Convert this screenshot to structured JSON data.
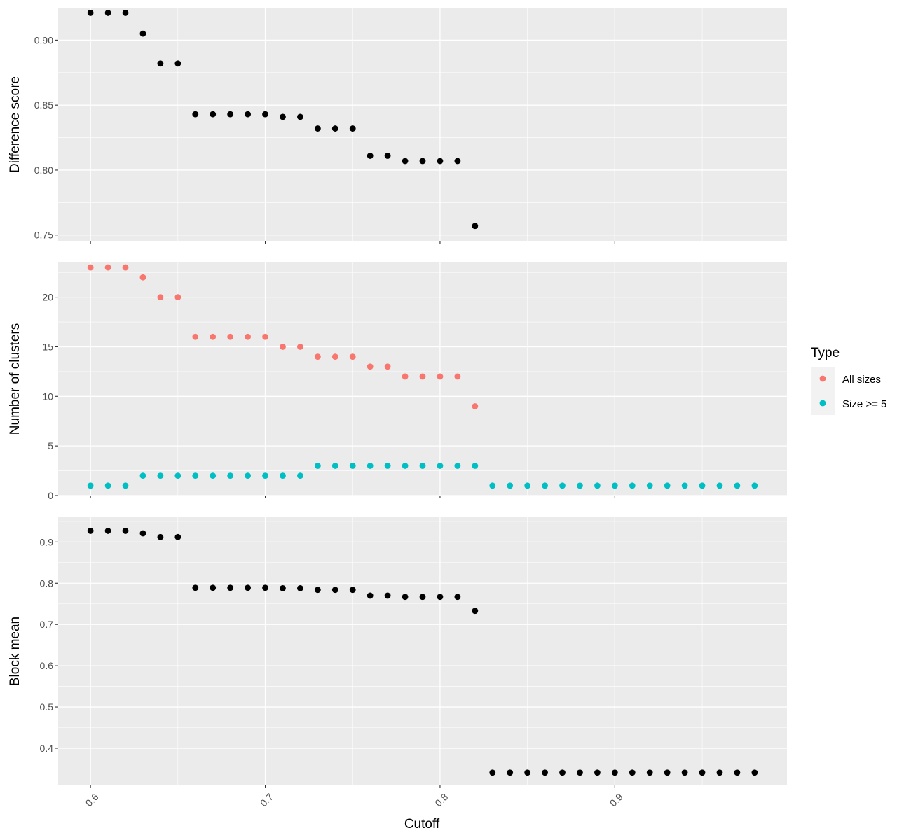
{
  "chart_data": [
    {
      "type": "scatter",
      "ylabel": "Difference score",
      "ylim": [
        0.745,
        0.925
      ],
      "yticks": [
        0.75,
        0.8,
        0.85,
        0.9
      ],
      "ytick_labels": [
        "0.75",
        "0.80",
        "0.85",
        "0.90"
      ],
      "series": [
        {
          "color": "#000000",
          "x": [
            0.6,
            0.61,
            0.62,
            0.63,
            0.64,
            0.65,
            0.66,
            0.67,
            0.68,
            0.69,
            0.7,
            0.71,
            0.72,
            0.73,
            0.74,
            0.75,
            0.76,
            0.77,
            0.78,
            0.79,
            0.8,
            0.81,
            0.82
          ],
          "y": [
            0.921,
            0.921,
            0.921,
            0.905,
            0.882,
            0.882,
            0.843,
            0.843,
            0.843,
            0.843,
            0.843,
            0.841,
            0.841,
            0.832,
            0.832,
            0.832,
            0.811,
            0.811,
            0.807,
            0.807,
            0.807,
            0.807,
            0.757
          ]
        }
      ]
    },
    {
      "type": "scatter",
      "ylabel": "Number of clusters",
      "ylim": [
        0,
        23.5
      ],
      "yticks": [
        0,
        5,
        10,
        15,
        20
      ],
      "ytick_labels": [
        "0",
        "5",
        "10",
        "15",
        "20"
      ],
      "series": [
        {
          "name": "All sizes",
          "color": "#F8766D",
          "x": [
            0.6,
            0.61,
            0.62,
            0.63,
            0.64,
            0.65,
            0.66,
            0.67,
            0.68,
            0.69,
            0.7,
            0.71,
            0.72,
            0.73,
            0.74,
            0.75,
            0.76,
            0.77,
            0.78,
            0.79,
            0.8,
            0.81,
            0.82
          ],
          "y": [
            23,
            23,
            23,
            22,
            20,
            20,
            16,
            16,
            16,
            16,
            16,
            15,
            15,
            14,
            14,
            14,
            13,
            13,
            12,
            12,
            12,
            12,
            9
          ]
        },
        {
          "name": "Size >= 5",
          "color": "#00BFC4",
          "x": [
            0.6,
            0.61,
            0.62,
            0.63,
            0.64,
            0.65,
            0.66,
            0.67,
            0.68,
            0.69,
            0.7,
            0.71,
            0.72,
            0.73,
            0.74,
            0.75,
            0.76,
            0.77,
            0.78,
            0.79,
            0.8,
            0.81,
            0.82,
            0.83,
            0.84,
            0.85,
            0.86,
            0.87,
            0.88,
            0.89,
            0.9,
            0.91,
            0.92,
            0.93,
            0.94,
            0.95,
            0.96,
            0.97,
            0.98
          ],
          "y": [
            1,
            1,
            1,
            2,
            2,
            2,
            2,
            2,
            2,
            2,
            2,
            2,
            2,
            3,
            3,
            3,
            3,
            3,
            3,
            3,
            3,
            3,
            3,
            1,
            1,
            1,
            1,
            1,
            1,
            1,
            1,
            1,
            1,
            1,
            1,
            1,
            1,
            1,
            1
          ]
        }
      ]
    },
    {
      "type": "scatter",
      "ylabel": "Block mean",
      "ylim": [
        0.31,
        0.96
      ],
      "yticks": [
        0.4,
        0.5,
        0.6,
        0.7,
        0.8,
        0.9
      ],
      "ytick_labels": [
        "0.4",
        "0.5",
        "0.6",
        "0.7",
        "0.8",
        "0.9"
      ],
      "series": [
        {
          "color": "#000000",
          "x": [
            0.6,
            0.61,
            0.62,
            0.63,
            0.64,
            0.65,
            0.66,
            0.67,
            0.68,
            0.69,
            0.7,
            0.71,
            0.72,
            0.73,
            0.74,
            0.75,
            0.76,
            0.77,
            0.78,
            0.79,
            0.8,
            0.81,
            0.82,
            0.83,
            0.84,
            0.85,
            0.86,
            0.87,
            0.88,
            0.89,
            0.9,
            0.91,
            0.92,
            0.93,
            0.94,
            0.95,
            0.96,
            0.97,
            0.98
          ],
          "y": [
            0.927,
            0.927,
            0.927,
            0.921,
            0.912,
            0.912,
            0.789,
            0.789,
            0.789,
            0.789,
            0.789,
            0.788,
            0.788,
            0.784,
            0.784,
            0.784,
            0.77,
            0.77,
            0.767,
            0.767,
            0.767,
            0.767,
            0.733,
            0.341,
            0.341,
            0.341,
            0.341,
            0.341,
            0.341,
            0.341,
            0.341,
            0.341,
            0.341,
            0.341,
            0.341,
            0.341,
            0.341,
            0.341,
            0.341
          ]
        }
      ]
    }
  ],
  "x_axis": {
    "label": "Cutoff",
    "xlim": [
      0.5815,
      0.9985
    ],
    "ticks": [
      0.6,
      0.7,
      0.8,
      0.9
    ],
    "tick_labels": [
      "0.6",
      "0.7",
      "0.8",
      "0.9"
    ]
  },
  "legend": {
    "title": "Type",
    "position": "right",
    "items": [
      {
        "label": "All sizes",
        "color": "#F8766D"
      },
      {
        "label": "Size >= 5",
        "color": "#00BFC4"
      }
    ]
  },
  "theme": {
    "panel_bg": "#EBEBEB",
    "grid_color": "#FFFFFF",
    "legend_key_bg": "#F2F2F2"
  }
}
